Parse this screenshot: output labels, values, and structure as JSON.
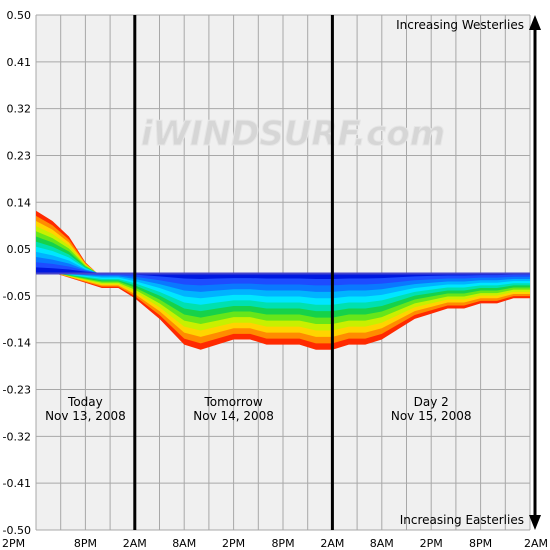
{
  "chart_data": {
    "type": "area",
    "title": "",
    "xlabel": "",
    "ylabel": "",
    "ylim": [
      -0.5,
      0.5
    ],
    "yticks": [
      "0.50",
      "0.41",
      "0.32",
      "0.23",
      "0.14",
      "0.05",
      "-0.05",
      "-0.14",
      "-0.23",
      "-0.32",
      "-0.41",
      "-0.50"
    ],
    "xticks": [
      "2PM",
      "8PM",
      "2AM",
      "8AM",
      "2PM",
      "8PM",
      "2AM",
      "8AM",
      "2PM",
      "8PM",
      "2AM"
    ],
    "x_hours": [
      0,
      6,
      12,
      18,
      24,
      30,
      36,
      42,
      48,
      54,
      60
    ],
    "day_dividers_hours": [
      12,
      36
    ],
    "grid": true,
    "top_label": "Increasing Westerlies",
    "bottom_label": "Increasing Easterlies",
    "days": [
      {
        "name": "Today",
        "date": "Nov 13, 2008",
        "center_hour": 6
      },
      {
        "name": "Tomorrow",
        "date": "Nov 14, 2008",
        "center_hour": 24
      },
      {
        "name": "Day 2",
        "date": "Nov 15, 2008",
        "center_hour": 48
      }
    ],
    "watermark": "iWINDSURF.com",
    "colors": {
      "bands": [
        "#ff2a00",
        "#ff8c00",
        "#ffd400",
        "#c8f000",
        "#66e61a",
        "#16d24a",
        "#00e0b0",
        "#00e6ff",
        "#00b4ff",
        "#0a78ff",
        "#1e4cff",
        "#0018e0"
      ],
      "plot_bg": "#f0f0f0",
      "grid": "#a8a8a8",
      "zero_line": "#4444cc",
      "dividers": "#000000"
    },
    "series": [
      {
        "x": [
          0,
          2,
          4,
          6,
          8,
          10,
          12,
          15,
          18,
          20,
          22,
          24,
          26,
          28,
          30,
          32,
          34,
          36,
          38,
          40,
          42,
          44,
          46,
          48,
          50,
          52,
          54,
          56,
          58,
          60
        ],
        "upper": [
          0.12,
          0.1,
          0.07,
          0.02,
          -0.01,
          -0.02,
          -0.02,
          -0.02,
          -0.02,
          -0.02,
          -0.02,
          -0.02,
          -0.02,
          -0.02,
          -0.01,
          -0.01,
          -0.01,
          -0.01,
          -0.01,
          -0.01,
          -0.01,
          -0.01,
          -0.01,
          -0.01,
          -0.01,
          -0.01,
          -0.01,
          -0.01,
          -0.01,
          -0.01
        ],
        "lower": [
          0.0,
          0.0,
          -0.01,
          -0.02,
          -0.03,
          -0.03,
          -0.05,
          -0.09,
          -0.14,
          -0.15,
          -0.14,
          -0.13,
          -0.13,
          -0.14,
          -0.14,
          -0.14,
          -0.15,
          -0.15,
          -0.14,
          -0.14,
          -0.13,
          -0.11,
          -0.09,
          -0.08,
          -0.07,
          -0.07,
          -0.06,
          -0.06,
          -0.05,
          -0.05
        ]
      }
    ]
  }
}
